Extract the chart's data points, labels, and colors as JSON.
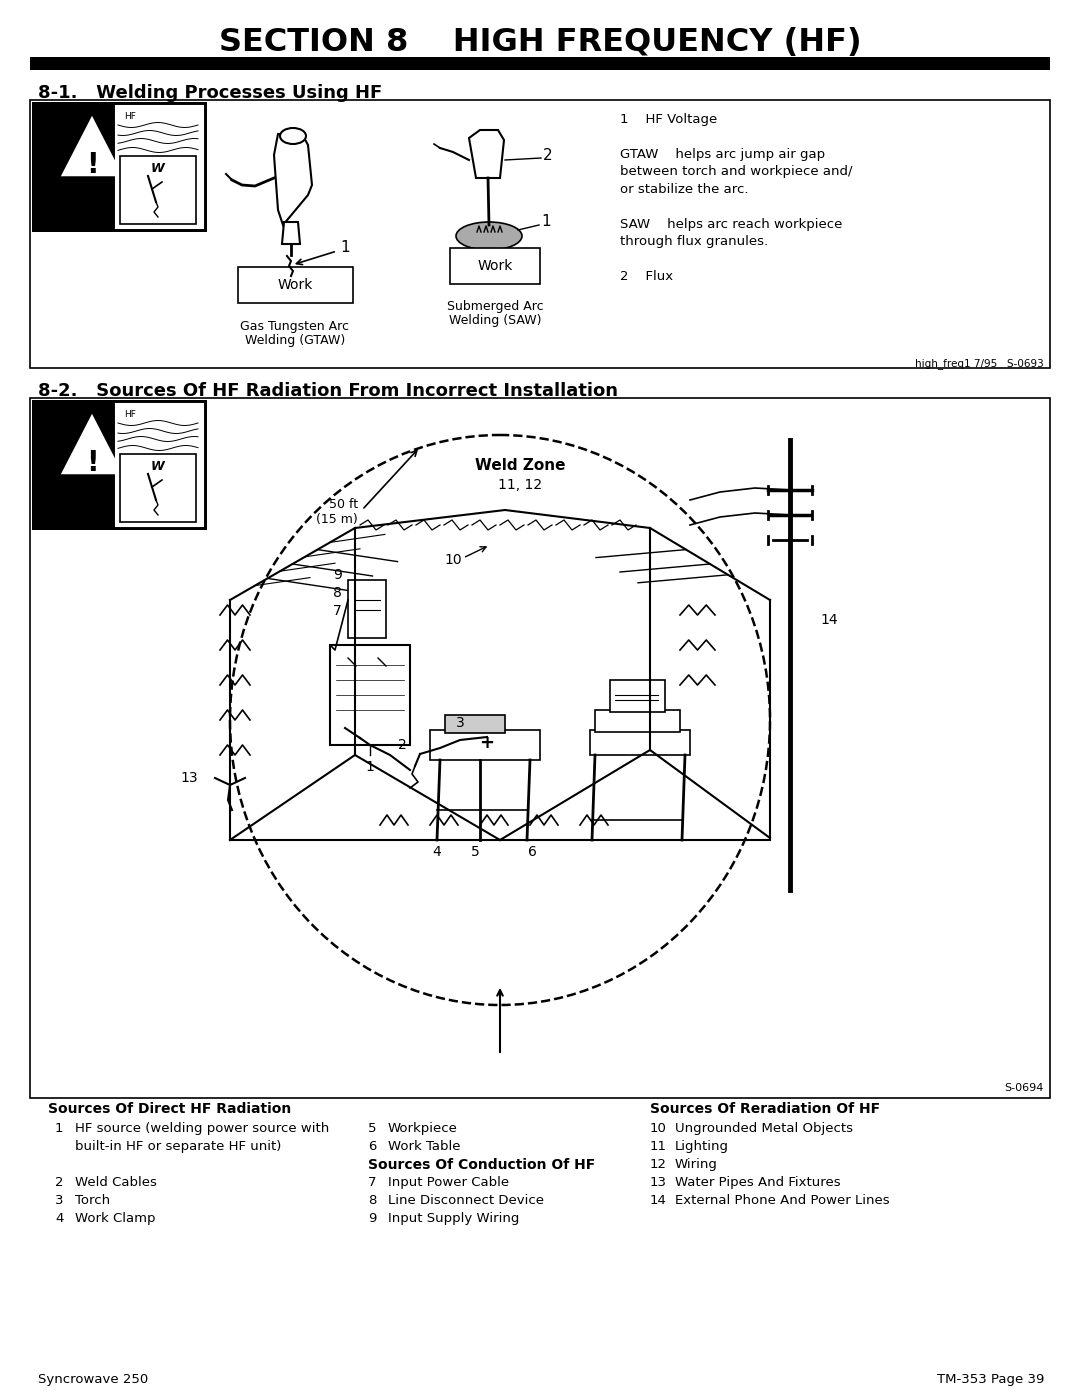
{
  "title": "SECTION 8    HIGH FREQUENCY (HF)",
  "section1_heading": "8-1.   Welding Processes Using HF",
  "section2_heading": "8-2.   Sources Of HF Radiation From Incorrect Installation",
  "bg_color": "#ffffff",
  "footer_left": "Syncrowave 250",
  "footer_right": "TM-353 Page 39",
  "ref1": "high_freq1 7/95   S-0693",
  "ref2": "S-0694",
  "section1_notes": [
    "1    HF Voltage",
    "",
    "GTAW    helps arc jump air gap",
    "between torch and workpiece and/",
    "or stabilize the arc.",
    "",
    "SAW    helps arc reach workpiece",
    "through flux granules.",
    "",
    "2    Flux"
  ],
  "direct_title": "Sources Of Direct HF Radiation",
  "direct_items": [
    [
      "1",
      "HF source (welding power source with"
    ],
    [
      "",
      "built-in HF or separate HF unit)"
    ],
    [
      "",
      ""
    ],
    [
      "2",
      "Weld Cables"
    ],
    [
      "3",
      "Torch"
    ],
    [
      "4",
      "Work Clamp"
    ]
  ],
  "col2_items": [
    [
      "5",
      "Workpiece"
    ],
    [
      "6",
      "Work Table"
    ]
  ],
  "conduction_title": "Sources Of Conduction Of HF",
  "conduction_items": [
    [
      "7",
      "Input Power Cable"
    ],
    [
      "8",
      "Line Disconnect Device"
    ],
    [
      "9",
      "Input Supply Wiring"
    ]
  ],
  "reradiation_title": "Sources Of Reradiation Of HF",
  "reradiation_items": [
    [
      "10",
      "Ungrounded Metal Objects"
    ],
    [
      "11",
      "Lighting"
    ],
    [
      "12",
      "Wiring"
    ],
    [
      "13",
      "Water Pipes And Fixtures"
    ],
    [
      "14",
      "External Phone And Power Lines"
    ]
  ]
}
